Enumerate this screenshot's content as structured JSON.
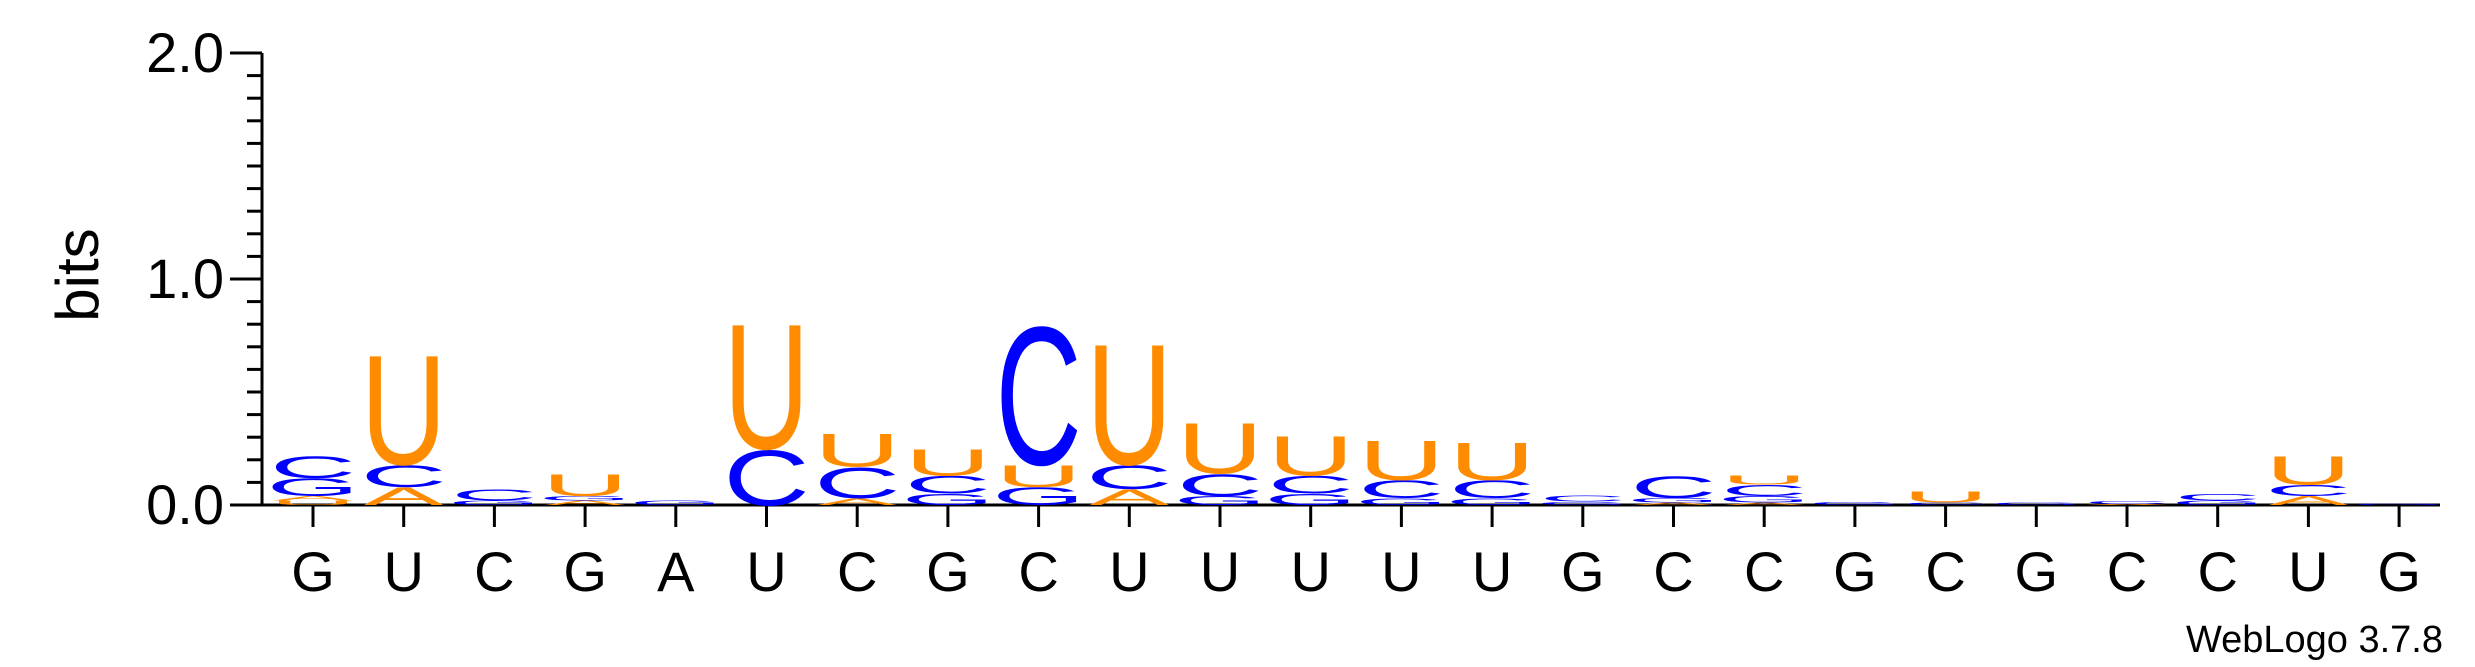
{
  "chart_data": {
    "type": "sequence-logo",
    "ylabel": "bits",
    "ylim": [
      0,
      2.0
    ],
    "yticks": [
      "0.0",
      "1.0",
      "2.0"
    ],
    "colors": {
      "A": "#ff8c00",
      "U": "#ff8c00",
      "C": "#0000ff",
      "G": "#0000ff"
    },
    "positions": [
      "G",
      "U",
      "C",
      "G",
      "A",
      "U",
      "C",
      "G",
      "C",
      "U",
      "U",
      "U",
      "U",
      "U",
      "G",
      "C",
      "C",
      "G",
      "C",
      "G",
      "C",
      "C",
      "U",
      "G"
    ],
    "stacks": [
      [
        [
          "U",
          0.02
        ],
        [
          "A",
          0.02
        ],
        [
          "G",
          0.08
        ],
        [
          "C",
          0.1
        ]
      ],
      [
        [
          "A",
          0.08
        ],
        [
          "C",
          0.1
        ],
        [
          "U",
          0.5
        ]
      ],
      [
        [
          "G",
          0.02
        ],
        [
          "C",
          0.05
        ]
      ],
      [
        [
          "A",
          0.02
        ],
        [
          "G",
          0.02
        ],
        [
          "U",
          0.1
        ]
      ],
      [
        [
          "G",
          0.02
        ]
      ],
      [
        [
          "C",
          0.25
        ],
        [
          "U",
          0.57
        ]
      ],
      [
        [
          "A",
          0.03
        ],
        [
          "C",
          0.14
        ],
        [
          "U",
          0.15
        ]
      ],
      [
        [
          "G",
          0.05
        ],
        [
          "C",
          0.08
        ],
        [
          "U",
          0.12
        ]
      ],
      [
        [
          "G",
          0.08
        ],
        [
          "U",
          0.1
        ],
        [
          "C",
          0.63
        ]
      ],
      [
        [
          "A",
          0.07
        ],
        [
          "C",
          0.11
        ],
        [
          "U",
          0.55
        ]
      ],
      [
        [
          "G",
          0.04
        ],
        [
          "C",
          0.1
        ],
        [
          "U",
          0.23
        ]
      ],
      [
        [
          "G",
          0.05
        ],
        [
          "C",
          0.08
        ],
        [
          "U",
          0.18
        ]
      ],
      [
        [
          "G",
          0.03
        ],
        [
          "C",
          0.08
        ],
        [
          "U",
          0.18
        ]
      ],
      [
        [
          "G",
          0.03
        ],
        [
          "C",
          0.08
        ],
        [
          "U",
          0.17
        ]
      ],
      [
        [
          "G",
          0.015
        ],
        [
          "C",
          0.025
        ]
      ],
      [
        [
          "A",
          0.01
        ],
        [
          "G",
          0.02
        ],
        [
          "C",
          0.1
        ]
      ],
      [
        [
          "A",
          0.01
        ],
        [
          "G",
          0.03
        ],
        [
          "C",
          0.05
        ],
        [
          "U",
          0.04
        ]
      ],
      [
        [
          "G",
          0.015
        ]
      ],
      [
        [
          "C",
          0.01
        ],
        [
          "U",
          0.05
        ]
      ],
      [
        [
          "G",
          0.01
        ]
      ],
      [
        [
          "A",
          0.005
        ],
        [
          "C",
          0.015
        ]
      ],
      [
        [
          "G",
          0.02
        ],
        [
          "C",
          0.03
        ]
      ],
      [
        [
          "A",
          0.04
        ],
        [
          "C",
          0.05
        ],
        [
          "U",
          0.13
        ]
      ],
      [
        [
          "G",
          0.005
        ]
      ]
    ]
  },
  "watermark": "WebLogo 3.7.8"
}
